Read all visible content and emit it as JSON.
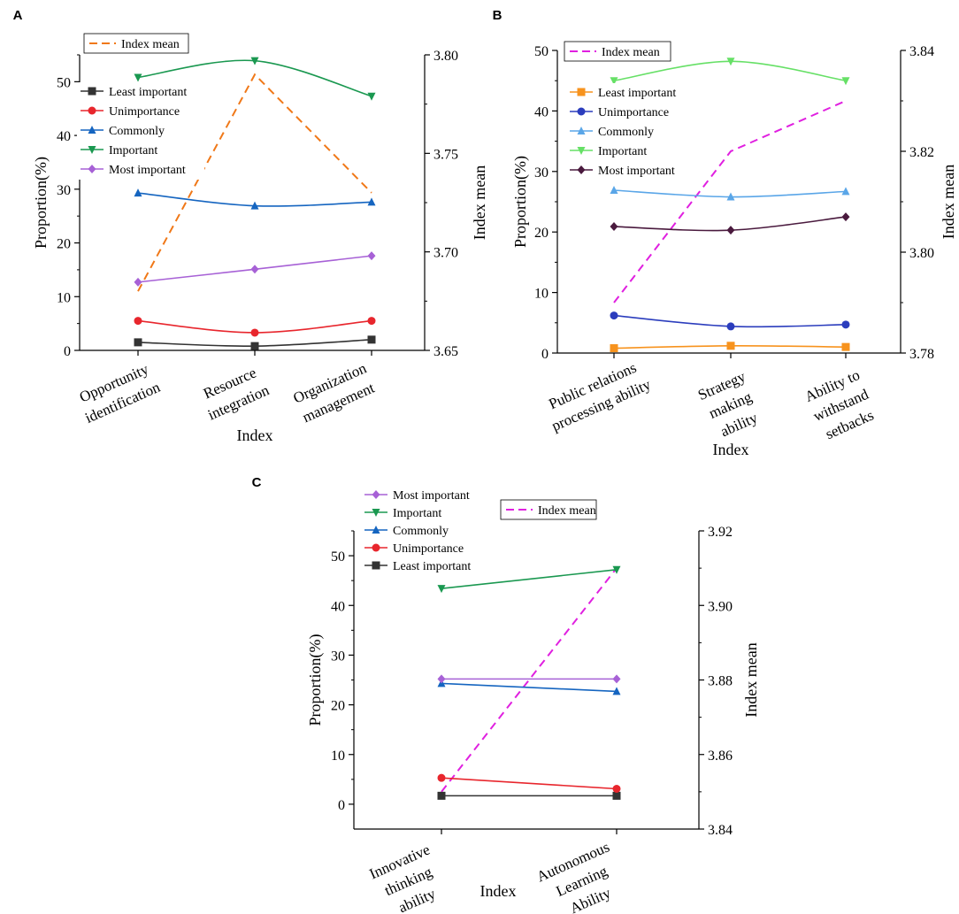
{
  "chart_data": [
    {
      "type": "line",
      "panel_label": "A",
      "categories": [
        [
          "Opportunity",
          "identification"
        ],
        [
          "Resource",
          "integration"
        ],
        [
          "Organization",
          "management"
        ]
      ],
      "xlabel": "Index",
      "ylabel": "Proportion(%)",
      "y2label": "Index mean",
      "ylim": [
        0,
        55
      ],
      "y2lim": [
        3.65,
        3.8
      ],
      "yticks": [
        "0",
        "10",
        "20",
        "30",
        "40",
        "50"
      ],
      "y2ticks": [
        "3.65",
        "3.70",
        "3.75",
        "3.80"
      ],
      "series": [
        {
          "name": "Least important",
          "values": [
            1.5,
            0.8,
            2.0
          ],
          "color": "#333333",
          "marker": "square",
          "smooth": true
        },
        {
          "name": "Unimportance",
          "values": [
            5.5,
            3.3,
            5.5
          ],
          "color": "#e8262d",
          "marker": "circle",
          "smooth": true
        },
        {
          "name": "Commonly",
          "values": [
            29.3,
            26.9,
            27.6
          ],
          "color": "#1565c0",
          "marker": "triangle-up",
          "smooth": true
        },
        {
          "name": "Important",
          "values": [
            50.8,
            53.9,
            47.3
          ],
          "color": "#1a9850",
          "marker": "triangle-down",
          "smooth": true
        },
        {
          "name": "Most important",
          "values": [
            12.7,
            15.1,
            17.6
          ],
          "color": "#a761d6",
          "marker": "diamond",
          "smooth": true
        }
      ],
      "y2series": {
        "name": "Index mean",
        "values": [
          3.68,
          3.79,
          3.73
        ],
        "color": "#f07818",
        "dashed": true
      },
      "legend": [
        "Least important",
        "Unimportance",
        "Commonly",
        "Important",
        "Most important"
      ],
      "legend_placement": "top-left",
      "legend2": "Index mean",
      "legend2_placement": "top-left"
    },
    {
      "type": "line",
      "panel_label": "B",
      "categories": [
        [
          "Public relations",
          "processing ability"
        ],
        [
          "Strategy",
          "making",
          "ability"
        ],
        [
          "Ability to",
          "withstand",
          "setbacks"
        ]
      ],
      "xlabel": "Index",
      "ylabel": "Proportion(%)",
      "y2label": "Index mean",
      "ylim": [
        0,
        50
      ],
      "y2lim": [
        3.78,
        3.84
      ],
      "yticks": [
        "0",
        "10",
        "20",
        "30",
        "40",
        "50"
      ],
      "y2ticks": [
        "3.78",
        "3.80",
        "3.82",
        "3.84"
      ],
      "series": [
        {
          "name": "Least important",
          "values": [
            0.8,
            1.2,
            1.0
          ],
          "color": "#f7931e",
          "marker": "square",
          "smooth": true
        },
        {
          "name": "Unimportance",
          "values": [
            6.2,
            4.4,
            4.7
          ],
          "color": "#2b3dbd",
          "marker": "circle",
          "smooth": true
        },
        {
          "name": "Commonly",
          "values": [
            26.9,
            25.8,
            26.7
          ],
          "color": "#5aa6e8",
          "marker": "triangle-up",
          "smooth": true
        },
        {
          "name": "Important",
          "values": [
            45.0,
            48.2,
            45.0
          ],
          "color": "#66e066",
          "marker": "triangle-down",
          "smooth": true
        },
        {
          "name": "Most important",
          "values": [
            20.9,
            20.3,
            22.5
          ],
          "color": "#4a1a3e",
          "marker": "diamond",
          "smooth": true
        }
      ],
      "y2series": {
        "name": "Index mean",
        "values": [
          3.79,
          3.82,
          3.83
        ],
        "color": "#e020e0",
        "dashed": true
      },
      "legend": [
        "Least important",
        "Unimportance",
        "Commonly",
        "Important",
        "Most important"
      ],
      "legend_placement": "top-left",
      "legend2": "Index mean",
      "legend2_placement": "top-left"
    },
    {
      "type": "line",
      "panel_label": "C",
      "categories": [
        [
          "Innovative",
          "thinking",
          "ability"
        ],
        [
          "Autonomous",
          "Learning",
          "Ability"
        ]
      ],
      "xlabel": "Index",
      "ylabel": "Proportion(%)",
      "y2label": "Index mean",
      "ylim": [
        -5,
        55
      ],
      "y2lim": [
        3.84,
        3.92
      ],
      "yticks": [
        "0",
        "10",
        "20",
        "30",
        "40",
        "50"
      ],
      "y2ticks": [
        "3.84",
        "3.86",
        "3.88",
        "3.90",
        "3.92"
      ],
      "series": [
        {
          "name": "Least important",
          "values": [
            1.7,
            1.7
          ],
          "color": "#333333",
          "marker": "square",
          "smooth": false
        },
        {
          "name": "Unimportance",
          "values": [
            5.3,
            3.1
          ],
          "color": "#e8262d",
          "marker": "circle",
          "smooth": false
        },
        {
          "name": "Commonly",
          "values": [
            24.3,
            22.7
          ],
          "color": "#1565c0",
          "marker": "triangle-up",
          "smooth": false
        },
        {
          "name": "Important",
          "values": [
            43.4,
            47.2
          ],
          "color": "#1a9850",
          "marker": "triangle-down",
          "smooth": false
        },
        {
          "name": "Most important",
          "values": [
            25.2,
            25.2
          ],
          "color": "#a761d6",
          "marker": "diamond",
          "smooth": false
        }
      ],
      "y2series": {
        "name": "Index mean",
        "values": [
          3.85,
          3.91
        ],
        "color": "#e020e0",
        "dashed": true
      },
      "legend": [
        "Most important",
        "Important",
        "Commonly",
        "Unimportance",
        "Least important"
      ],
      "legend_placement": "top-left",
      "legend2": "Index mean",
      "legend2_placement": "top-right"
    }
  ]
}
